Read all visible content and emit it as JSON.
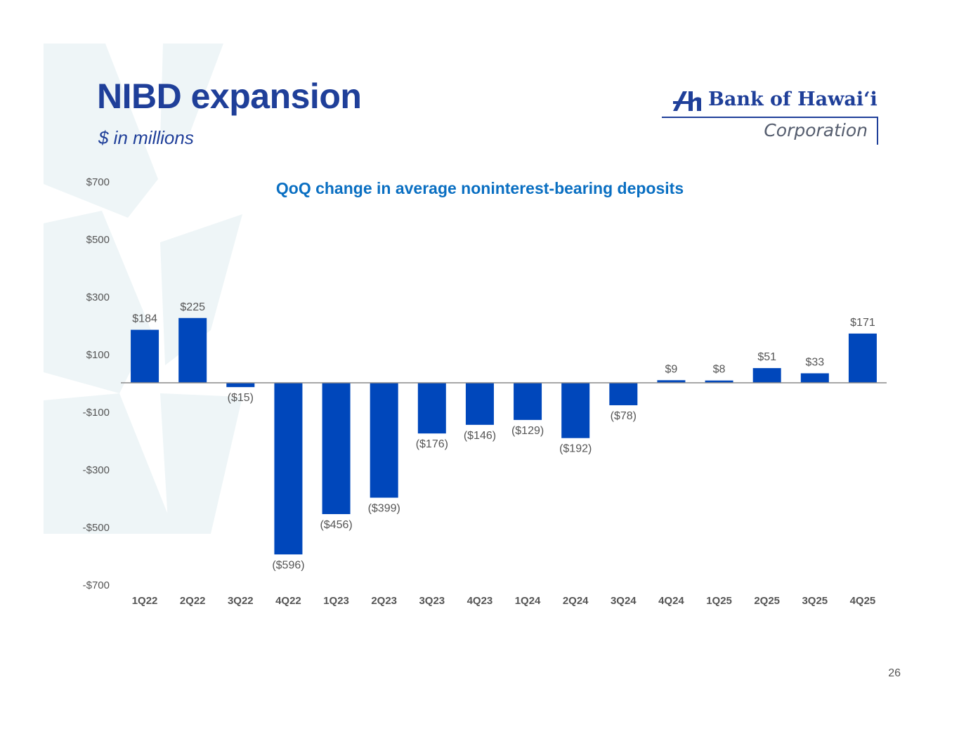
{
  "page": {
    "title": "NIBD expansion",
    "subtitle": "$ in millions",
    "page_number": "26"
  },
  "logo": {
    "name": "Bank of Hawaiʻi",
    "sub": "Corporation",
    "color": "#1f3f99"
  },
  "colors": {
    "bar": "#0047bb",
    "title": "#1f3f99",
    "chart_title": "#0a6fc2",
    "axis_text": "#555555",
    "background_mark": "#eef5f7"
  },
  "chart_data": {
    "type": "bar",
    "title": "QoQ change in average noninterest-bearing deposits",
    "xlabel": "",
    "ylabel": "",
    "categories": [
      "1Q22",
      "2Q22",
      "3Q22",
      "4Q22",
      "1Q23",
      "2Q23",
      "3Q23",
      "4Q23",
      "1Q24",
      "2Q24",
      "3Q24",
      "4Q24",
      "1Q25",
      "2Q25",
      "3Q25",
      "4Q25"
    ],
    "values": [
      184,
      225,
      -15,
      -596,
      -456,
      -399,
      -176,
      -146,
      -129,
      -192,
      -78,
      9,
      8,
      51,
      33,
      171
    ],
    "data_labels": [
      "$184",
      "$225",
      "($15)",
      "($596)",
      "($456)",
      "($399)",
      "($176)",
      "($146)",
      "($129)",
      "($192)",
      "($78)",
      "$9",
      "$8",
      "$51",
      "$33",
      "$171"
    ],
    "yticks": [
      700,
      500,
      300,
      100,
      -100,
      -300,
      -500,
      -700
    ],
    "ytick_labels": [
      "$700",
      "$500",
      "$300",
      "$100",
      "-$100",
      "-$300",
      "-$500",
      "-$700"
    ],
    "ylim": [
      -700,
      700
    ],
    "grid": false,
    "legend": "none"
  }
}
